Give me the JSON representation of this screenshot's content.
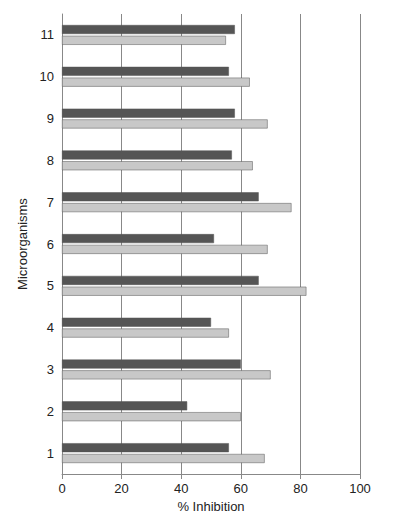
{
  "chart_data": {
    "type": "bar",
    "orientation": "horizontal",
    "xlabel": "% Inhibition",
    "ylabel": "Microorganisms",
    "categories": [
      "1",
      "2",
      "3",
      "4",
      "5",
      "6",
      "7",
      "8",
      "9",
      "10",
      "11"
    ],
    "series": [
      {
        "color": "#555555",
        "values": [
          56,
          42,
          60,
          50,
          66,
          51,
          66,
          57,
          58,
          56,
          58
        ]
      },
      {
        "color": "#c8c8c8",
        "values": [
          68,
          60,
          70,
          56,
          82,
          69,
          77,
          64,
          69,
          63,
          55
        ]
      }
    ],
    "xlim": [
      0,
      100
    ],
    "xticks": [
      0,
      20,
      40,
      60,
      80,
      100
    ],
    "grid": true
  }
}
